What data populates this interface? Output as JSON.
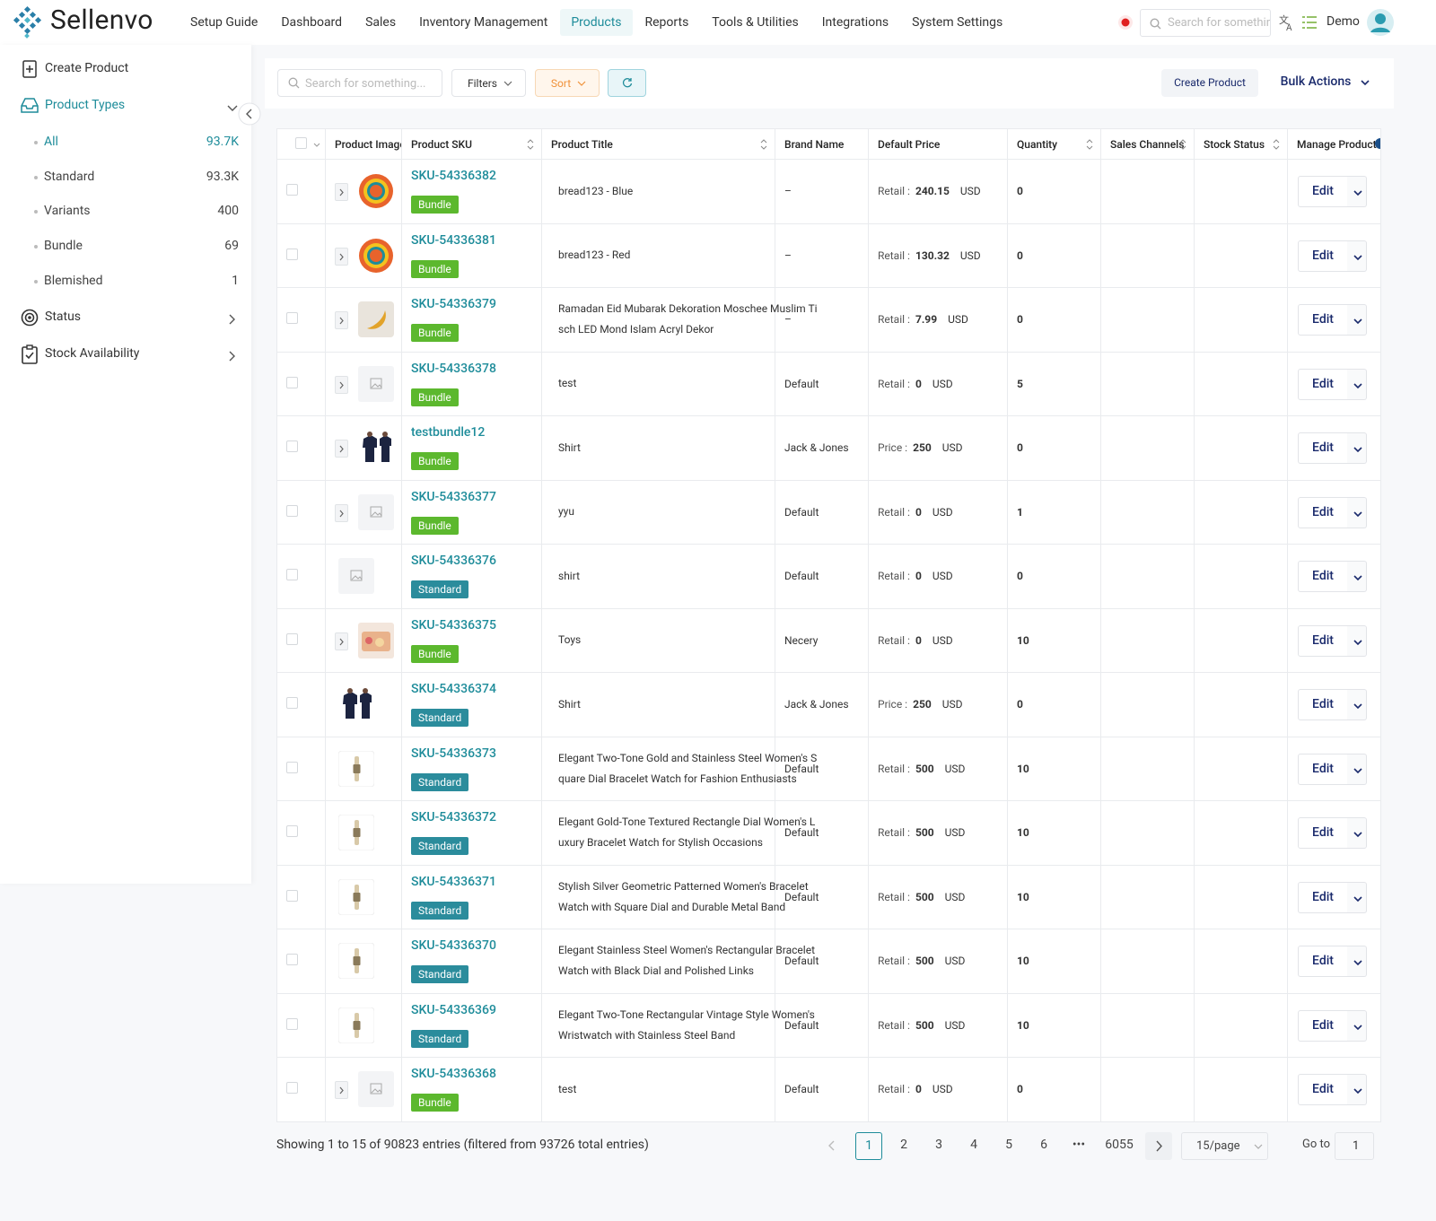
{
  "header": {
    "logo": "Sellenvo",
    "nav": [
      "Setup Guide",
      "Dashboard",
      "Sales",
      "Inventory Management",
      "Products",
      "Reports",
      "Tools & Utilities",
      "Integrations",
      "System Settings"
    ],
    "active_nav": 4,
    "search_placeholder": "Search for something...",
    "user": "Demo"
  },
  "sidebar": {
    "create": "Create Product",
    "product_types": "Product Types",
    "types": [
      {
        "label": "All",
        "count": "93.7K"
      },
      {
        "label": "Standard",
        "count": "93.3K"
      },
      {
        "label": "Variants",
        "count": 400
      },
      {
        "label": "Bundle",
        "count": 69
      },
      {
        "label": "Blemished",
        "count": 1
      }
    ],
    "active_type": 0,
    "status": "Status",
    "stock": "Stock Availability"
  },
  "toolbar": {
    "search_placeholder": "Search for something...",
    "filters": "Filters",
    "sort": "Sort",
    "create": "Create Product",
    "bulk": "Bulk Actions"
  },
  "table": {
    "columns": [
      "Product Image",
      "Product SKU",
      "Product Title",
      "Brand Name",
      "Default Price",
      "Quantity",
      "Sales Channels",
      "Stock Status",
      "Manage Product"
    ],
    "rows": [
      {
        "sku": "SKU-54336382",
        "type": "Bundle",
        "expandable": true,
        "title": "bread123 - Blue",
        "brand": "–",
        "price_label": "Retail :",
        "price": 240.15,
        "currency": "USD",
        "quantity": 0,
        "action": "Edit"
      },
      {
        "sku": "SKU-54336381",
        "type": "Bundle",
        "expandable": true,
        "title": "bread123 - Red",
        "brand": "–",
        "price_label": "Retail :",
        "price": 130.32,
        "currency": "USD",
        "quantity": 0,
        "action": "Edit"
      },
      {
        "sku": "SKU-54336379",
        "type": "Bundle",
        "expandable": true,
        "title": "Ramadan Eid Mubarak Dekoration Moschee Muslim Tisch LED Mond Islam Acryl Dekor",
        "brand": "–",
        "price_label": "Retail :",
        "price": 7.99,
        "currency": "USD",
        "quantity": 0,
        "action": "Edit"
      },
      {
        "sku": "SKU-54336378",
        "type": "Bundle",
        "expandable": true,
        "title": "test",
        "brand": "Default",
        "price_label": "Retail :",
        "price": 0,
        "currency": "USD",
        "quantity": 5,
        "action": "Edit"
      },
      {
        "sku": "testbundle12",
        "type": "Bundle",
        "expandable": true,
        "title": "Shirt",
        "brand": "Jack & Jones",
        "price_label": "Price :",
        "price": 250,
        "currency": "USD",
        "quantity": 0,
        "action": "Edit"
      },
      {
        "sku": "SKU-54336377",
        "type": "Bundle",
        "expandable": true,
        "title": "yyu",
        "brand": "Default",
        "price_label": "Retail :",
        "price": 0,
        "currency": "USD",
        "quantity": 1,
        "action": "Edit"
      },
      {
        "sku": "SKU-54336376",
        "type": "Standard",
        "expandable": false,
        "title": "shirt",
        "brand": "Default",
        "price_label": "Retail :",
        "price": 0,
        "currency": "USD",
        "quantity": 0,
        "action": "Edit"
      },
      {
        "sku": "SKU-54336375",
        "type": "Bundle",
        "expandable": true,
        "title": "Toys",
        "brand": "Necery",
        "price_label": "Retail :",
        "price": 0,
        "currency": "USD",
        "quantity": 10,
        "action": "Edit"
      },
      {
        "sku": "SKU-54336374",
        "type": "Standard",
        "expandable": false,
        "title": "Shirt",
        "brand": "Jack & Jones",
        "price_label": "Price :",
        "price": 250,
        "currency": "USD",
        "quantity": 0,
        "action": "Edit"
      },
      {
        "sku": "SKU-54336373",
        "type": "Standard",
        "expandable": false,
        "title": "Elegant Two-Tone Gold and Stainless Steel Women's Square Dial Bracelet Watch for Fashion Enthusiasts",
        "brand": "Default",
        "price_label": "Retail :",
        "price": 500,
        "currency": "USD",
        "quantity": 10,
        "action": "Edit"
      },
      {
        "sku": "SKU-54336372",
        "type": "Standard",
        "expandable": false,
        "title": "Elegant Gold-Tone Textured Rectangle Dial Women's Luxury Bracelet Watch for Stylish Occasions",
        "brand": "Default",
        "price_label": "Retail :",
        "price": 500,
        "currency": "USD",
        "quantity": 10,
        "action": "Edit"
      },
      {
        "sku": "SKU-54336371",
        "type": "Standard",
        "expandable": false,
        "title": "Stylish Silver Geometric Patterned Women's Bracelet Watch with Square Dial and Durable Metal Band",
        "brand": "Default",
        "price_label": "Retail :",
        "price": 500,
        "currency": "USD",
        "quantity": 10,
        "action": "Edit"
      },
      {
        "sku": "SKU-54336370",
        "type": "Standard",
        "expandable": false,
        "title": "Elegant Stainless Steel Women's Rectangular Bracelet Watch with Black Dial and Polished Links",
        "brand": "Default",
        "price_label": "Retail :",
        "price": 500,
        "currency": "USD",
        "quantity": 10,
        "action": "Edit"
      },
      {
        "sku": "SKU-54336369",
        "type": "Standard",
        "expandable": false,
        "title": "Elegant Two-Tone Rectangular Vintage Style Women's Wristwatch with Stainless Steel Band",
        "brand": "Default",
        "price_label": "Retail :",
        "price": 500,
        "currency": "USD",
        "quantity": 10,
        "action": "Edit"
      },
      {
        "sku": "SKU-54336368",
        "type": "Bundle",
        "expandable": true,
        "title": "test",
        "brand": "Default",
        "price_label": "Retail :",
        "price": 0,
        "currency": "USD",
        "quantity": 0,
        "action": "Edit"
      }
    ]
  },
  "pagination": {
    "summary": "Showing 1 to 15 of 90823 entries (filtered from 93726 total entries)",
    "pages": [
      1,
      2,
      3,
      4,
      5,
      6,
      "•••",
      6055
    ],
    "current": 0,
    "page_size": "15/page",
    "goto_label": "Go to",
    "goto_value": 1
  }
}
